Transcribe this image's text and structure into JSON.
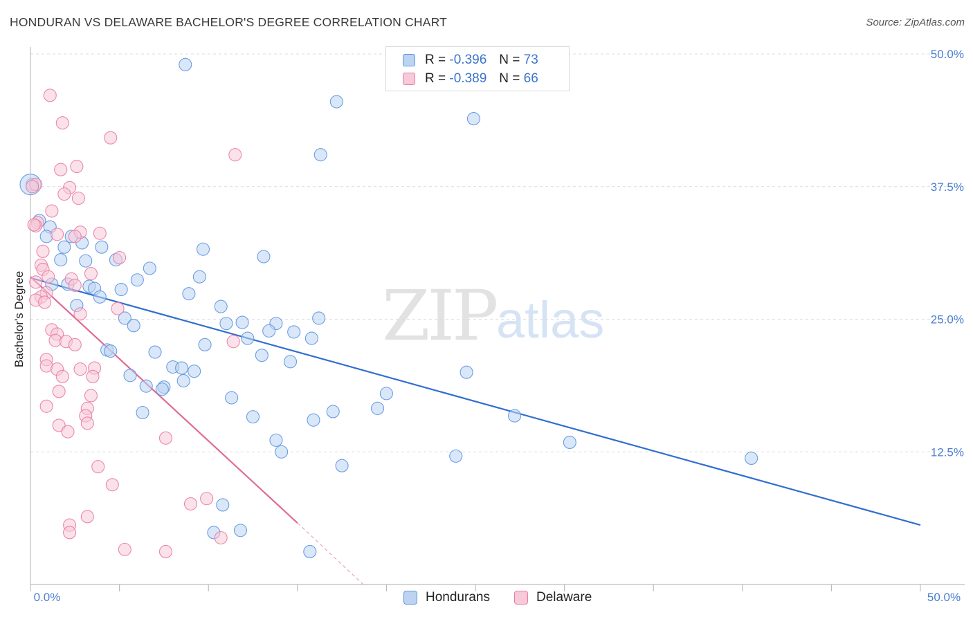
{
  "header": {
    "title": "HONDURAN VS DELAWARE BACHELOR'S DEGREE CORRELATION CHART",
    "source": "Source: ZipAtlas.com"
  },
  "watermark": {
    "zip": "ZIP",
    "atlas": "atlas"
  },
  "legend": {
    "series": [
      {
        "name": "Hondurans",
        "r_label": "R = ",
        "r_value": "-0.396",
        "n_label": "N = ",
        "n_value": "73",
        "color": "#5b95e0",
        "fill": "#bcd3f2"
      },
      {
        "name": "Delaware",
        "r_label": "R = ",
        "r_value": "-0.389",
        "n_label": "N = ",
        "n_value": "66",
        "color": "#e87da0",
        "fill": "#f8c9d8"
      }
    ]
  },
  "chart_data": {
    "type": "scatter",
    "title": "HONDURAN VS DELAWARE BACHELOR'S DEGREE CORRELATION CHART",
    "xlabel": "",
    "ylabel": "Bachelor's Degree",
    "xlim": [
      0,
      50
    ],
    "ylim": [
      0,
      50
    ],
    "x_tick_labels": [
      "0.0%",
      "50.0%"
    ],
    "y_ticks": [
      12.5,
      25.0,
      37.5,
      50.0
    ],
    "y_tick_labels": [
      "12.5%",
      "25.0%",
      "37.5%",
      "50.0%"
    ],
    "grid": true,
    "series": [
      {
        "name": "Hondurans",
        "color": "#5b95e0",
        "fill": "#bcd3f2",
        "points": [
          [
            8.7,
            49.0
          ],
          [
            17.2,
            45.5
          ],
          [
            24.9,
            43.9
          ],
          [
            16.3,
            40.5
          ],
          [
            0.1,
            37.7
          ],
          [
            0.5,
            34.3
          ],
          [
            1.1,
            33.7
          ],
          [
            0.9,
            32.8
          ],
          [
            2.3,
            32.8
          ],
          [
            2.9,
            32.2
          ],
          [
            1.9,
            31.8
          ],
          [
            4.0,
            31.8
          ],
          [
            9.7,
            31.6
          ],
          [
            13.1,
            30.9
          ],
          [
            1.7,
            30.6
          ],
          [
            3.1,
            30.5
          ],
          [
            4.8,
            30.6
          ],
          [
            6.7,
            29.8
          ],
          [
            9.5,
            29.0
          ],
          [
            6.0,
            28.7
          ],
          [
            1.2,
            28.3
          ],
          [
            2.1,
            28.3
          ],
          [
            3.3,
            28.1
          ],
          [
            3.6,
            27.9
          ],
          [
            5.1,
            27.8
          ],
          [
            8.9,
            27.4
          ],
          [
            3.9,
            27.1
          ],
          [
            2.6,
            26.3
          ],
          [
            10.7,
            26.2
          ],
          [
            5.3,
            25.1
          ],
          [
            16.2,
            25.1
          ],
          [
            11.0,
            24.6
          ],
          [
            11.9,
            24.7
          ],
          [
            13.8,
            24.6
          ],
          [
            5.8,
            24.4
          ],
          [
            13.4,
            23.9
          ],
          [
            14.8,
            23.8
          ],
          [
            15.8,
            23.2
          ],
          [
            12.2,
            23.2
          ],
          [
            9.8,
            22.6
          ],
          [
            4.3,
            22.1
          ],
          [
            4.5,
            22.0
          ],
          [
            7.0,
            21.9
          ],
          [
            13.0,
            21.6
          ],
          [
            14.6,
            21.0
          ],
          [
            8.0,
            20.5
          ],
          [
            8.5,
            20.4
          ],
          [
            9.2,
            20.1
          ],
          [
            24.5,
            20.0
          ],
          [
            5.6,
            19.7
          ],
          [
            8.6,
            19.2
          ],
          [
            6.5,
            18.7
          ],
          [
            7.5,
            18.6
          ],
          [
            7.4,
            18.4
          ],
          [
            11.3,
            17.6
          ],
          [
            20.0,
            18.0
          ],
          [
            19.5,
            16.6
          ],
          [
            17.0,
            16.3
          ],
          [
            6.3,
            16.2
          ],
          [
            12.5,
            15.8
          ],
          [
            27.2,
            15.9
          ],
          [
            15.9,
            15.5
          ],
          [
            13.8,
            13.6
          ],
          [
            30.3,
            13.4
          ],
          [
            14.1,
            12.5
          ],
          [
            23.9,
            12.1
          ],
          [
            40.5,
            11.9
          ],
          [
            17.5,
            11.2
          ],
          [
            10.8,
            7.5
          ],
          [
            10.3,
            4.9
          ],
          [
            11.8,
            5.1
          ],
          [
            15.7,
            3.1
          ],
          [
            0.0,
            37.7
          ]
        ],
        "trend": {
          "x": [
            0,
            50
          ],
          "y": [
            28.9,
            5.6
          ]
        }
      },
      {
        "name": "Delaware",
        "color": "#e87da0",
        "fill": "#f8c9d8",
        "points": [
          [
            1.1,
            46.1
          ],
          [
            1.8,
            43.5
          ],
          [
            4.5,
            42.1
          ],
          [
            11.5,
            40.5
          ],
          [
            2.6,
            39.4
          ],
          [
            1.7,
            39.1
          ],
          [
            0.3,
            37.7
          ],
          [
            2.2,
            37.4
          ],
          [
            1.9,
            36.8
          ],
          [
            2.7,
            36.4
          ],
          [
            1.2,
            35.2
          ],
          [
            0.4,
            34.1
          ],
          [
            0.3,
            33.8
          ],
          [
            1.5,
            33.0
          ],
          [
            2.8,
            33.2
          ],
          [
            3.9,
            33.1
          ],
          [
            0.7,
            31.4
          ],
          [
            5.0,
            30.8
          ],
          [
            0.6,
            30.1
          ],
          [
            0.7,
            29.7
          ],
          [
            3.4,
            29.3
          ],
          [
            1.0,
            29.0
          ],
          [
            2.3,
            28.8
          ],
          [
            2.5,
            28.2
          ],
          [
            0.3,
            28.5
          ],
          [
            0.9,
            27.5
          ],
          [
            0.6,
            27.1
          ],
          [
            0.3,
            26.8
          ],
          [
            0.8,
            26.6
          ],
          [
            4.9,
            26.0
          ],
          [
            2.8,
            25.5
          ],
          [
            1.2,
            24.0
          ],
          [
            1.5,
            23.6
          ],
          [
            1.4,
            23.0
          ],
          [
            2.0,
            22.9
          ],
          [
            2.5,
            22.6
          ],
          [
            11.4,
            22.9
          ],
          [
            0.9,
            21.2
          ],
          [
            0.9,
            20.6
          ],
          [
            1.5,
            20.3
          ],
          [
            3.6,
            20.4
          ],
          [
            2.8,
            20.3
          ],
          [
            1.8,
            19.6
          ],
          [
            3.5,
            19.6
          ],
          [
            1.6,
            18.2
          ],
          [
            3.4,
            17.8
          ],
          [
            0.9,
            16.8
          ],
          [
            3.2,
            16.6
          ],
          [
            3.1,
            15.9
          ],
          [
            3.2,
            15.2
          ],
          [
            1.6,
            15.0
          ],
          [
            2.1,
            14.4
          ],
          [
            7.6,
            13.8
          ],
          [
            3.8,
            11.1
          ],
          [
            4.6,
            9.4
          ],
          [
            9.0,
            7.6
          ],
          [
            9.9,
            8.1
          ],
          [
            2.2,
            5.6
          ],
          [
            2.2,
            4.9
          ],
          [
            3.2,
            6.4
          ],
          [
            5.3,
            3.3
          ],
          [
            7.6,
            3.1
          ],
          [
            10.7,
            4.4
          ],
          [
            0.1,
            37.5
          ],
          [
            0.2,
            33.9
          ],
          [
            2.5,
            32.8
          ]
        ],
        "trend": {
          "x": [
            0,
            15
          ],
          "y": [
            29.0,
            5.8
          ]
        },
        "trend_extension": {
          "x": [
            15,
            18.7
          ],
          "y": [
            5.8,
            0.0
          ]
        }
      }
    ]
  }
}
